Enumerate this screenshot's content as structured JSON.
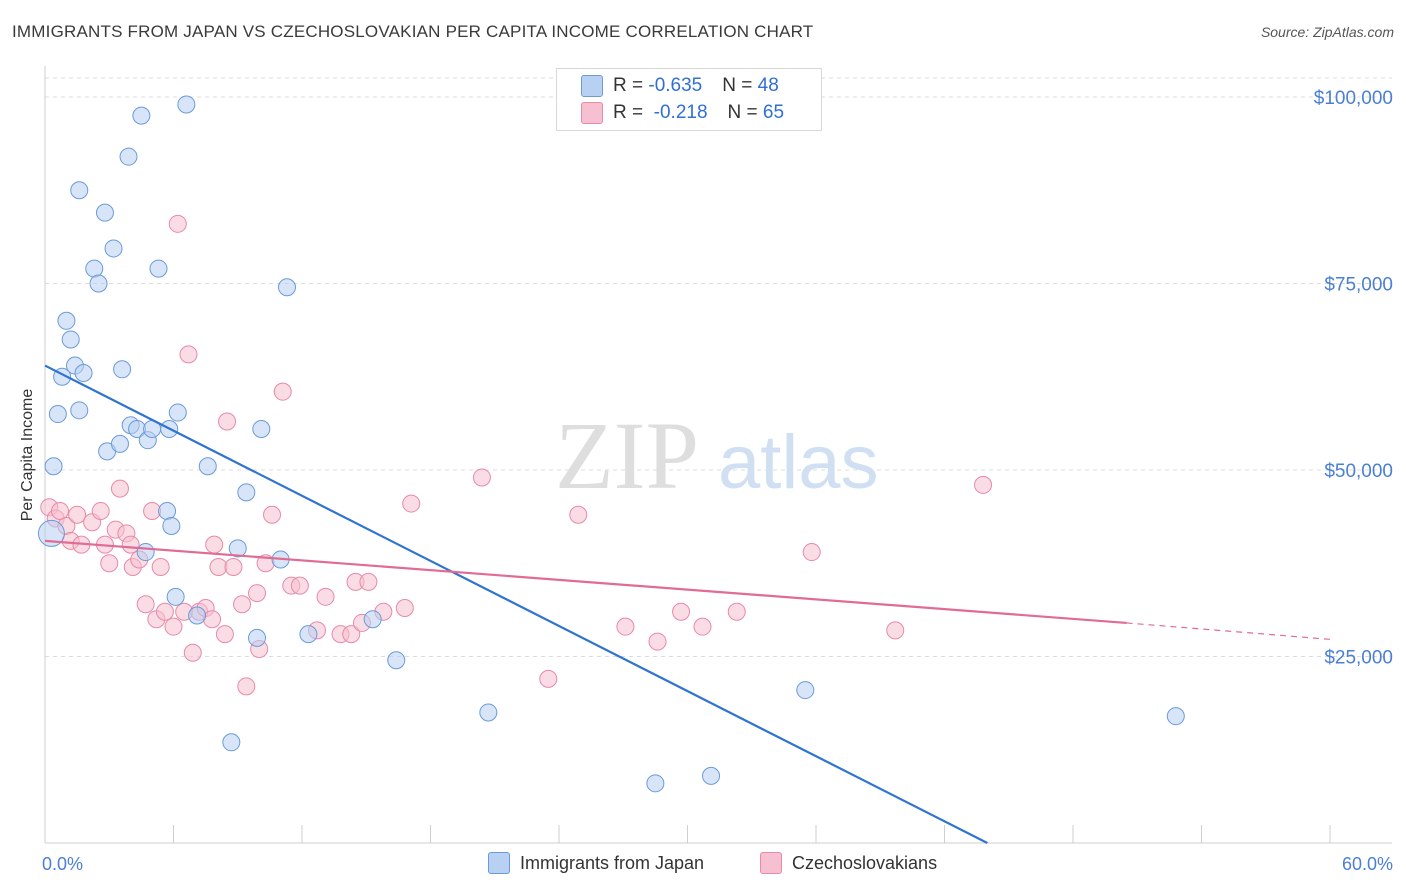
{
  "title": "IMMIGRANTS FROM JAPAN VS CZECHOSLOVAKIAN PER CAPITA INCOME CORRELATION CHART",
  "source": "Source: ZipAtlas.com",
  "watermark": {
    "zip": "ZIP",
    "atlas": "atlas"
  },
  "colors": {
    "blue_fill": "#b8d0f2",
    "blue_stroke": "#6a9bd8",
    "blue_line": "#2f74d0",
    "pink_fill": "#f6c0d0",
    "pink_stroke": "#e88aa8",
    "pink_line": "#e06c94",
    "axis_text": "#4a7fd4",
    "grid": "#dcdcdc"
  },
  "legend": {
    "rows": [
      {
        "r_label": "R = ",
        "r_value": "-0.635",
        "n_label": "N = ",
        "n_value": "48"
      },
      {
        "r_label": "R = ",
        "r_value": " -0.218",
        "n_label": "N = ",
        "n_value": "65"
      }
    ]
  },
  "chart_data": {
    "type": "scatter",
    "title": "IMMIGRANTS FROM JAPAN VS CZECHOSLOVAKIAN PER CAPITA INCOME CORRELATION CHART",
    "xlabel": "",
    "ylabel": "Per Capita Income",
    "xlim": [
      0,
      60
    ],
    "ylim": [
      0,
      100000
    ],
    "x_tick_labels": [
      "0.0%",
      "60.0%"
    ],
    "y_ticks": [
      25000,
      50000,
      75000,
      100000
    ],
    "y_tick_labels": [
      "$25,000",
      "$50,000",
      "$75,000",
      "$100,000"
    ],
    "grid": true,
    "legend_position": "top-center",
    "series": [
      {
        "name": "Immigrants from Japan",
        "color": "#6a9bd8",
        "r": -0.635,
        "n": 48,
        "trend": {
          "x": [
            0,
            44
          ],
          "y": [
            64000,
            0
          ]
        },
        "points": [
          [
            0.3,
            41500
          ],
          [
            0.4,
            50500
          ],
          [
            0.6,
            57500
          ],
          [
            0.8,
            62500
          ],
          [
            1.0,
            70000
          ],
          [
            1.2,
            67500
          ],
          [
            1.4,
            64000
          ],
          [
            1.6,
            58000
          ],
          [
            1.6,
            87500
          ],
          [
            1.8,
            63000
          ],
          [
            2.3,
            77000
          ],
          [
            2.5,
            75000
          ],
          [
            2.8,
            84500
          ],
          [
            2.9,
            52500
          ],
          [
            3.2,
            79700
          ],
          [
            3.5,
            53500
          ],
          [
            3.6,
            63500
          ],
          [
            3.9,
            92000
          ],
          [
            4.0,
            56000
          ],
          [
            4.3,
            55500
          ],
          [
            4.5,
            97500
          ],
          [
            4.7,
            39000
          ],
          [
            4.8,
            54000
          ],
          [
            5.0,
            55500
          ],
          [
            5.3,
            77000
          ],
          [
            5.7,
            44500
          ],
          [
            5.8,
            55500
          ],
          [
            5.9,
            42500
          ],
          [
            6.1,
            33000
          ],
          [
            6.2,
            57700
          ],
          [
            6.6,
            99000
          ],
          [
            7.1,
            30500
          ],
          [
            7.6,
            50500
          ],
          [
            8.7,
            13500
          ],
          [
            9.0,
            39500
          ],
          [
            9.4,
            47000
          ],
          [
            9.9,
            27500
          ],
          [
            10.1,
            55500
          ],
          [
            11.3,
            74500
          ],
          [
            11.0,
            38000
          ],
          [
            12.3,
            28000
          ],
          [
            15.3,
            30000
          ],
          [
            16.4,
            24500
          ],
          [
            20.7,
            17500
          ],
          [
            28.5,
            8000
          ],
          [
            31.1,
            9000
          ],
          [
            35.5,
            20500
          ],
          [
            52.8,
            17000
          ]
        ]
      },
      {
        "name": "Czechoslovakians",
        "color": "#e88aa8",
        "r": -0.218,
        "n": 65,
        "trend": {
          "x": [
            0,
            50.5
          ],
          "y": [
            40500,
            29500
          ]
        },
        "trend_dashed": {
          "x": [
            50.5,
            60
          ],
          "y": [
            29500,
            27300
          ]
        },
        "points": [
          [
            0.2,
            45000
          ],
          [
            0.5,
            43500
          ],
          [
            0.7,
            44500
          ],
          [
            1.0,
            42500
          ],
          [
            1.2,
            40500
          ],
          [
            1.5,
            44000
          ],
          [
            1.7,
            40000
          ],
          [
            2.2,
            43000
          ],
          [
            2.6,
            44500
          ],
          [
            2.8,
            40000
          ],
          [
            3.0,
            37500
          ],
          [
            3.3,
            42000
          ],
          [
            3.5,
            47500
          ],
          [
            3.8,
            41500
          ],
          [
            4.0,
            40000
          ],
          [
            4.1,
            37000
          ],
          [
            4.4,
            38000
          ],
          [
            4.7,
            32000
          ],
          [
            5.0,
            44500
          ],
          [
            5.2,
            30000
          ],
          [
            5.4,
            37000
          ],
          [
            5.6,
            31000
          ],
          [
            6.0,
            29000
          ],
          [
            6.2,
            83000
          ],
          [
            6.5,
            31000
          ],
          [
            6.7,
            65500
          ],
          [
            6.9,
            25500
          ],
          [
            7.2,
            31000
          ],
          [
            7.5,
            31500
          ],
          [
            7.8,
            30000
          ],
          [
            7.9,
            40000
          ],
          [
            8.1,
            37000
          ],
          [
            8.4,
            28000
          ],
          [
            8.5,
            56500
          ],
          [
            8.8,
            37000
          ],
          [
            9.2,
            32000
          ],
          [
            9.4,
            21000
          ],
          [
            9.9,
            33500
          ],
          [
            10.0,
            26000
          ],
          [
            10.3,
            37500
          ],
          [
            10.6,
            44000
          ],
          [
            11.1,
            60500
          ],
          [
            11.5,
            34500
          ],
          [
            11.9,
            34500
          ],
          [
            12.7,
            28500
          ],
          [
            13.1,
            33000
          ],
          [
            13.8,
            28000
          ],
          [
            14.3,
            28000
          ],
          [
            14.5,
            35000
          ],
          [
            14.8,
            29500
          ],
          [
            15.1,
            35000
          ],
          [
            15.8,
            31000
          ],
          [
            16.8,
            31500
          ],
          [
            17.1,
            45500
          ],
          [
            20.4,
            49000
          ],
          [
            23.5,
            22000
          ],
          [
            24.9,
            44000
          ],
          [
            27.1,
            29000
          ],
          [
            28.6,
            27000
          ],
          [
            29.7,
            31000
          ],
          [
            30.7,
            29000
          ],
          [
            32.3,
            31000
          ],
          [
            35.8,
            39000
          ],
          [
            39.7,
            28500
          ],
          [
            43.8,
            48000
          ]
        ]
      }
    ]
  },
  "bottom_legend": [
    "Immigrants from Japan",
    "Czechoslovakians"
  ]
}
